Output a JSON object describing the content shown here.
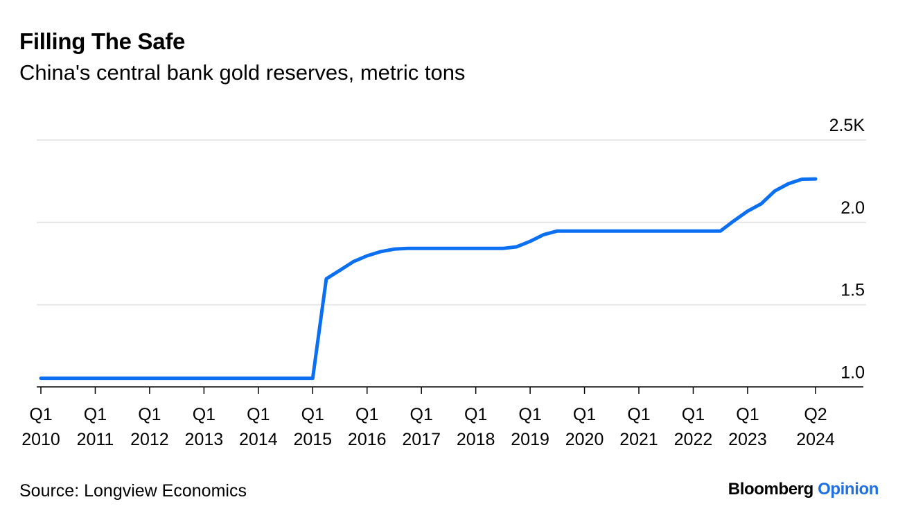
{
  "title": "Filling The Safe",
  "subtitle": "China's central bank gold reserves, metric tons",
  "source": "Source: Longview Economics",
  "brand": {
    "name": "Bloomberg",
    "section": "Opinion"
  },
  "colors": {
    "line": "#0a6ff0",
    "grid": "#e6e6e6",
    "axis": "#000000",
    "brand_accent": "#1f6fe5"
  },
  "chart_data": {
    "type": "line",
    "title": "Filling The Safe",
    "subtitle": "China's central bank gold reserves, metric tons",
    "xlabel": "",
    "ylabel": "",
    "y_unit_suffix": "K",
    "ylim": [
      0.95,
      2.5
    ],
    "yticks": [
      1.0,
      1.5,
      2.0,
      2.5
    ],
    "ytick_labels": [
      "1.0",
      "1.5",
      "2.0",
      "2.5K"
    ],
    "grid": true,
    "y_axis_side": "right",
    "xlim": [
      "2010-Q1",
      "2024-Q2"
    ],
    "xticks": [
      {
        "x": "2010-Q1",
        "line1": "Q1",
        "line2": "2010"
      },
      {
        "x": "2011-Q1",
        "line1": "Q1",
        "line2": "2011"
      },
      {
        "x": "2012-Q1",
        "line1": "Q1",
        "line2": "2012"
      },
      {
        "x": "2013-Q1",
        "line1": "Q1",
        "line2": "2013"
      },
      {
        "x": "2014-Q1",
        "line1": "Q1",
        "line2": "2014"
      },
      {
        "x": "2015-Q1",
        "line1": "Q1",
        "line2": "2015"
      },
      {
        "x": "2016-Q1",
        "line1": "Q1",
        "line2": "2016"
      },
      {
        "x": "2017-Q1",
        "line1": "Q1",
        "line2": "2017"
      },
      {
        "x": "2018-Q1",
        "line1": "Q1",
        "line2": "2018"
      },
      {
        "x": "2019-Q1",
        "line1": "Q1",
        "line2": "2019"
      },
      {
        "x": "2020-Q1",
        "line1": "Q1",
        "line2": "2020"
      },
      {
        "x": "2021-Q1",
        "line1": "Q1",
        "line2": "2021"
      },
      {
        "x": "2022-Q1",
        "line1": "Q1",
        "line2": "2022"
      },
      {
        "x": "2023-Q1",
        "line1": "Q1",
        "line2": "2023"
      },
      {
        "x": "2024-Q2",
        "line1": "Q2",
        "line2": "2024"
      }
    ],
    "series": [
      {
        "x": [
          "2010-Q1",
          "2010-Q2",
          "2010-Q3",
          "2010-Q4",
          "2011-Q1",
          "2011-Q2",
          "2011-Q3",
          "2011-Q4",
          "2012-Q1",
          "2012-Q2",
          "2012-Q3",
          "2012-Q4",
          "2013-Q1",
          "2013-Q2",
          "2013-Q3",
          "2013-Q4",
          "2014-Q1",
          "2014-Q2",
          "2014-Q3",
          "2014-Q4",
          "2015-Q1",
          "2015-Q2",
          "2015-Q3",
          "2015-Q4",
          "2016-Q1",
          "2016-Q2",
          "2016-Q3",
          "2016-Q4",
          "2017-Q1",
          "2017-Q2",
          "2017-Q3",
          "2017-Q4",
          "2018-Q1",
          "2018-Q2",
          "2018-Q3",
          "2018-Q4",
          "2019-Q1",
          "2019-Q2",
          "2019-Q3",
          "2019-Q4",
          "2020-Q1",
          "2020-Q2",
          "2020-Q3",
          "2020-Q4",
          "2021-Q1",
          "2021-Q2",
          "2021-Q3",
          "2021-Q4",
          "2022-Q1",
          "2022-Q2",
          "2022-Q3",
          "2022-Q4",
          "2023-Q1",
          "2023-Q2",
          "2023-Q3",
          "2023-Q4",
          "2024-Q1",
          "2024-Q2"
        ],
        "values": [
          1.054,
          1.054,
          1.054,
          1.054,
          1.054,
          1.054,
          1.054,
          1.054,
          1.054,
          1.054,
          1.054,
          1.054,
          1.054,
          1.054,
          1.054,
          1.054,
          1.054,
          1.054,
          1.054,
          1.054,
          1.054,
          1.658,
          1.709,
          1.762,
          1.797,
          1.823,
          1.838,
          1.842,
          1.842,
          1.842,
          1.842,
          1.842,
          1.842,
          1.842,
          1.842,
          1.852,
          1.885,
          1.926,
          1.948,
          1.948,
          1.948,
          1.948,
          1.948,
          1.948,
          1.948,
          1.948,
          1.948,
          1.948,
          1.948,
          1.948,
          1.948,
          2.01,
          2.068,
          2.113,
          2.191,
          2.235,
          2.262,
          2.264
        ]
      }
    ]
  }
}
